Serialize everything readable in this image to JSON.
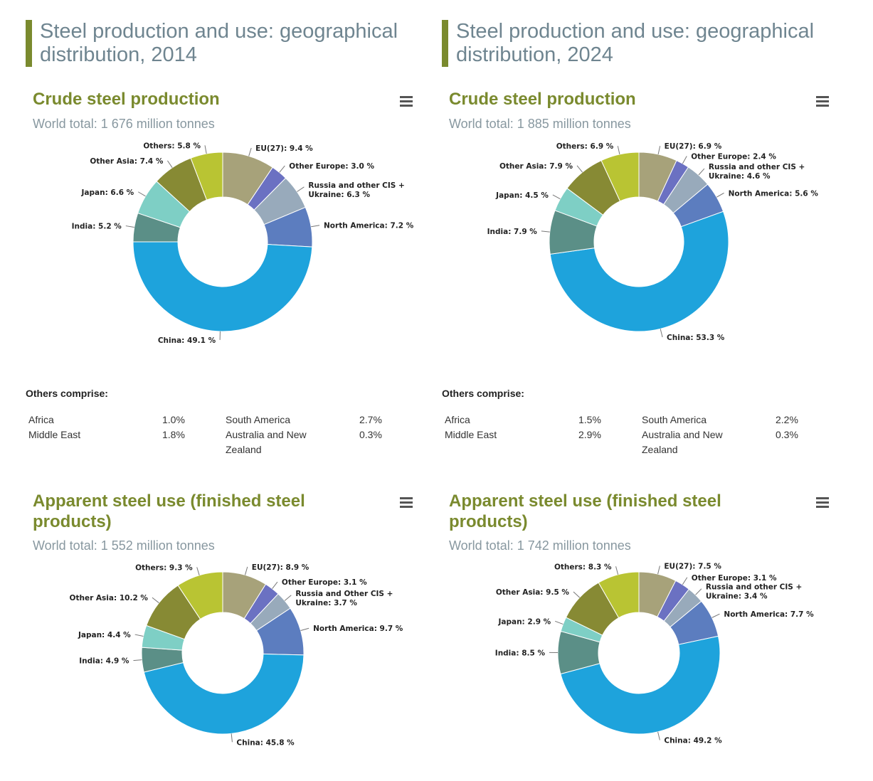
{
  "columns": [
    {
      "heading": "Steel production and use: geographical distribution, 2014",
      "production": {
        "title": "Crude steel production",
        "subtitle": "World total: 1 676 million tonnes"
      },
      "others": {
        "heading": "Others comprise:",
        "rows": [
          [
            {
              "name": "Africa",
              "value": "1.0%"
            },
            {
              "name": "South America",
              "value": "2.7%"
            }
          ],
          [
            {
              "name": "Middle East",
              "value": "1.8%"
            },
            {
              "name": "Australia and New Zealand",
              "value": "0.3%"
            }
          ]
        ]
      },
      "use": {
        "title": "Apparent steel use (finished steel products)",
        "subtitle": "World total: 1 552 million tonnes"
      }
    },
    {
      "heading": "Steel production and use: geographical distribution, 2024",
      "production": {
        "title": "Crude steel production",
        "subtitle": "World total: 1 885 million tonnes"
      },
      "others": {
        "heading": "Others comprise:",
        "rows": [
          [
            {
              "name": "Africa",
              "value": "1.5%"
            },
            {
              "name": "South America",
              "value": "2.2%"
            }
          ],
          [
            {
              "name": "Middle East",
              "value": "2.9%"
            },
            {
              "name": "Australia and New Zealand",
              "value": "0.3%"
            }
          ]
        ]
      },
      "use": {
        "title": "Apparent steel use (finished steel products)",
        "subtitle": "World total: 1 742 million tonnes"
      }
    }
  ],
  "colors": {
    "EU(27)": "#a7a27a",
    "Other Europe": "#6b71c2",
    "Russia and other CIS + Ukraine": "#98aabb",
    "North America": "#5c7dbf",
    "China": "#1ea3dc",
    "India": "#5b8f87",
    "Japan": "#7ecfc5",
    "Other Asia": "#878a34",
    "Others": "#b9c433"
  },
  "chart_data": [
    {
      "type": "pie",
      "title": "Crude steel production",
      "year": "2014",
      "categories": [
        "EU(27)",
        "Other Europe",
        "Russia and other CIS + Ukraine",
        "North America",
        "China",
        "India",
        "Japan",
        "Other Asia",
        "Others"
      ],
      "values": [
        9.4,
        3.0,
        6.3,
        7.2,
        49.1,
        5.2,
        6.6,
        7.4,
        5.8
      ],
      "labels": [
        "EU(27): 9.4 %",
        "Other Europe: 3.0 %",
        "Russia and other CIS + Ukraine: 6.3 %",
        "North America: 7.2 %",
        "China: 49.1 %",
        "India: 5.2 %",
        "Japan: 6.6 %",
        "Other Asia: 7.4 %",
        "Others: 5.8 %"
      ]
    },
    {
      "type": "pie",
      "title": "Crude steel production",
      "year": "2024",
      "categories": [
        "EU(27)",
        "Other Europe",
        "Russia and other CIS + Ukraine",
        "North America",
        "China",
        "India",
        "Japan",
        "Other Asia",
        "Others"
      ],
      "values": [
        6.9,
        2.4,
        4.6,
        5.6,
        53.3,
        7.9,
        4.5,
        7.9,
        6.9
      ],
      "labels": [
        "EU(27): 6.9 %",
        "Other Europe: 2.4 %",
        "Russia and other CIS + Ukraine: 4.6 %",
        "North America: 5.6 %",
        "China: 53.3 %",
        "India: 7.9 %",
        "Japan: 4.5 %",
        "Other Asia: 7.9 %",
        "Others: 6.9 %"
      ]
    },
    {
      "type": "pie",
      "title": "Apparent steel use (finished steel products)",
      "year": "2014",
      "categories": [
        "EU(27)",
        "Other Europe",
        "Russia and other CIS + Ukraine",
        "North America",
        "China",
        "India",
        "Japan",
        "Other Asia",
        "Others"
      ],
      "values": [
        8.9,
        3.1,
        3.7,
        9.7,
        45.8,
        4.9,
        4.4,
        10.2,
        9.3
      ],
      "labels": [
        "EU(27): 8.9 %",
        "Other Europe: 3.1 %",
        "Russia and Other CIS + Ukraine: 3.7 %",
        "North America: 9.7 %",
        "China: 45.8 %",
        "India: 4.9 %",
        "Japan: 4.4 %",
        "Other Asia: 10.2 %",
        "Others: 9.3 %"
      ]
    },
    {
      "type": "pie",
      "title": "Apparent steel use (finished steel products)",
      "year": "2024",
      "categories": [
        "EU(27)",
        "Other Europe",
        "Russia and other CIS + Ukraine",
        "North America",
        "China",
        "India",
        "Japan",
        "Other Asia",
        "Others"
      ],
      "values": [
        7.5,
        3.1,
        3.4,
        7.7,
        49.2,
        8.5,
        2.9,
        9.5,
        8.3
      ],
      "labels": [
        "EU(27): 7.5 %",
        "Other Europe: 3.1 %",
        "Russia and other CIS + Ukraine: 3.4 %",
        "North America: 7.7 %",
        "China: 49.2 %",
        "India: 8.5 %",
        "Japan: 2.9 %",
        "Other Asia: 9.5 %",
        "Others: 8.3 %"
      ]
    }
  ]
}
